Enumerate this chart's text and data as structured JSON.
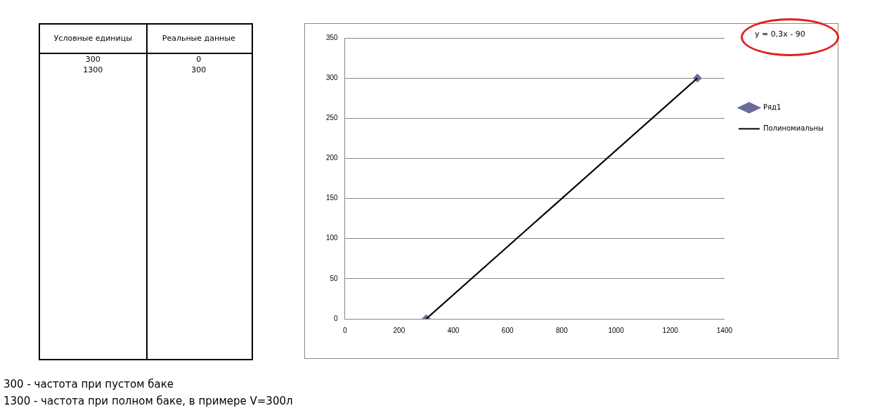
{
  "chart_data": {
    "type": "line",
    "annotations": [
      "y = 0,3x - 90",
      "Условные единицы",
      "Реальные данные",
      "300",
      "0",
      "1300",
      "300",
      "300 - частота при пустом баке",
      "1300 - частота при полном баке, в примере V=300л"
    ],
    "x": [
      300,
      1300
    ],
    "series": [
      {
        "name": "Ряд1",
        "color": "#6b6b9b",
        "values": [
          0,
          300
        ],
        "marker": "diamond"
      },
      {
        "name": "Полиномиальны",
        "color": "#000000",
        "values": [
          0,
          300
        ],
        "marker": "none"
      }
    ],
    "xlim": [
      0,
      1400
    ],
    "xticks": [
      0,
      200,
      400,
      600,
      800,
      1000,
      1200,
      1400
    ],
    "ylim": [
      0,
      350
    ],
    "yticks": [
      0,
      50,
      100,
      150,
      200,
      250,
      300,
      350
    ],
    "grid": "y",
    "legend": "right"
  }
}
